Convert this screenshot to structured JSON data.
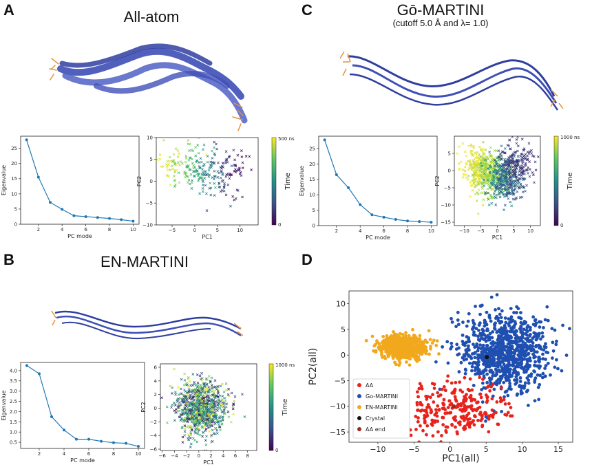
{
  "panels": {
    "A": {
      "letter": "A",
      "title": "All-atom"
    },
    "B": {
      "letter": "B",
      "title": "EN-MARTINI"
    },
    "C": {
      "letter": "C",
      "title": "Gō-MARTINI",
      "subtitle": "(cutoff 5.0 Å and λ= 1.0)"
    },
    "D": {
      "letter": "D"
    }
  },
  "colors": {
    "blue": "#1f77b4",
    "aa": "#e8221b",
    "go": "#1f4fb0",
    "en": "#f2a81d",
    "crystal": "#111111",
    "aaend": "#9a2a22",
    "protein": "#3e4fb5",
    "tip": "#e8913a"
  },
  "chart_data": [
    {
      "id": "A-eig",
      "type": "line",
      "xlabel": "PC mode",
      "ylabel": "Eigenvalue",
      "x": [
        1,
        2,
        3,
        4,
        5,
        6,
        7,
        8,
        9,
        10
      ],
      "values": [
        27.8,
        15.5,
        7.2,
        4.9,
        2.8,
        2.5,
        2.2,
        1.9,
        1.5,
        1.0
      ],
      "xlim": [
        0.5,
        10.5
      ],
      "ylim": [
        0,
        29
      ],
      "xticks": [
        2,
        4,
        6,
        8,
        10
      ],
      "yticks": [
        0,
        5,
        10,
        15,
        20,
        25
      ]
    },
    {
      "id": "A-pca",
      "type": "scatter",
      "xlabel": "PC1",
      "ylabel": "PC2",
      "xlim": [
        -8.5,
        14
      ],
      "ylim": [
        -10,
        10
      ],
      "xticks": [
        -5,
        0,
        5,
        10
      ],
      "yticks": [
        -10,
        -5,
        0,
        5,
        10
      ],
      "colorbar": {
        "label": "Time",
        "max_label": "500 ns",
        "min_label": "0"
      }
    },
    {
      "id": "C-eig",
      "type": "line",
      "xlabel": "PC mode",
      "ylabel": "Eigenvalue",
      "x": [
        1,
        2,
        3,
        4,
        5,
        6,
        7,
        8,
        9,
        10
      ],
      "values": [
        27.8,
        16.5,
        12.3,
        6.8,
        3.5,
        2.7,
        2.0,
        1.5,
        1.3,
        1.1
      ],
      "xlim": [
        0.5,
        10.5
      ],
      "ylim": [
        0,
        29
      ],
      "xticks": [
        2,
        4,
        6,
        8,
        10
      ],
      "yticks": [
        0,
        5,
        10,
        15,
        20,
        25
      ]
    },
    {
      "id": "C-pca",
      "type": "scatter",
      "xlabel": "PC1",
      "ylabel": "PC2",
      "xlim": [
        -13,
        13
      ],
      "ylim": [
        -16,
        10
      ],
      "xticks": [
        -10,
        -5,
        0,
        5,
        10
      ],
      "yticks": [
        -15,
        -10,
        -5,
        0,
        5
      ],
      "colorbar": {
        "label": "Time",
        "max_label": "1000 ns",
        "min_label": "0"
      }
    },
    {
      "id": "B-eig",
      "type": "line",
      "xlabel": "PC mode",
      "ylabel": "Eigenvalue",
      "x": [
        1,
        2,
        3,
        4,
        5,
        6,
        7,
        8,
        9,
        10
      ],
      "values": [
        4.25,
        3.85,
        1.75,
        1.1,
        0.65,
        0.65,
        0.55,
        0.48,
        0.45,
        0.3
      ],
      "xlim": [
        0.5,
        10.5
      ],
      "ylim": [
        0.2,
        4.4
      ],
      "xticks": [
        2,
        4,
        6,
        8,
        10
      ],
      "yticks": [
        0.5,
        1.0,
        1.5,
        2.0,
        2.5,
        3.0,
        3.5,
        4.0
      ],
      "yticklabels": [
        "0.5",
        "1.0",
        "1.5",
        "2.0",
        "2.5",
        "3.0",
        "3.5",
        "4.0"
      ]
    },
    {
      "id": "B-pca",
      "type": "scatter",
      "xlabel": "PC1",
      "ylabel": "PC2",
      "xlim": [
        -6.3,
        9.5
      ],
      "ylim": [
        -6.2,
        6.5
      ],
      "xticks": [
        -6,
        -4,
        -2,
        0,
        2,
        4,
        6,
        8
      ],
      "yticks": [
        -6,
        -4,
        -2,
        0,
        2,
        4,
        6
      ],
      "colorbar": {
        "label": "Time",
        "max_label": "1000 ns",
        "min_label": "0"
      }
    },
    {
      "id": "D",
      "type": "scatter",
      "xlabel": "PC1(all)",
      "ylabel": "PC2(all)",
      "xlim": [
        -14,
        17
      ],
      "ylim": [
        -17,
        12.5
      ],
      "xticks": [
        -10,
        -5,
        0,
        5,
        10,
        15
      ],
      "yticks": [
        -15,
        -10,
        -5,
        0,
        5,
        10
      ],
      "legend": [
        {
          "label": "AA",
          "color": "#e8221b"
        },
        {
          "label": "Go-MARTINI",
          "color": "#1f4fb0"
        },
        {
          "label": "EN-MARTINI",
          "color": "#f2a81d"
        },
        {
          "label": "Crystal",
          "color": "#111111"
        },
        {
          "label": "AA end",
          "color": "#9a2a22"
        }
      ],
      "clusters": [
        {
          "name": "Go-MARTINI",
          "center": [
            7.5,
            0.5
          ],
          "spread": [
            3.0,
            3.8
          ],
          "n": 900,
          "color": "#1f4fb0"
        },
        {
          "name": "AA",
          "center": [
            0.5,
            -10.5
          ],
          "spread": [
            3.5,
            2.8
          ],
          "n": 280,
          "color": "#e8221b"
        },
        {
          "name": "EN-MARTINI",
          "center": [
            -6.5,
            1.5
          ],
          "spread": [
            1.6,
            1.1
          ],
          "n": 650,
          "color": "#f2a81d"
        }
      ],
      "crystal": [
        5.1,
        -0.4
      ],
      "aa_end": [
        0.5,
        -10.0
      ]
    }
  ]
}
